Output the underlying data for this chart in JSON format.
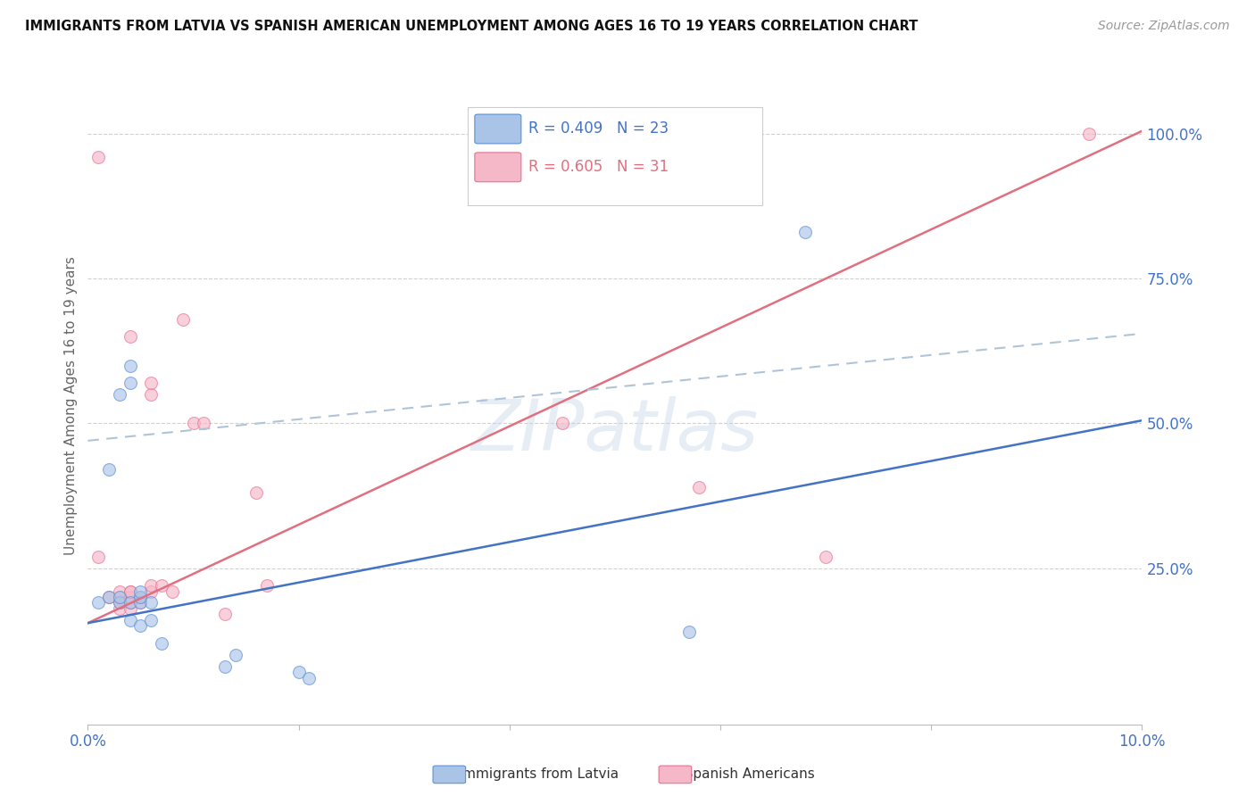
{
  "title": "IMMIGRANTS FROM LATVIA VS SPANISH AMERICAN UNEMPLOYMENT AMONG AGES 16 TO 19 YEARS CORRELATION CHART",
  "source": "Source: ZipAtlas.com",
  "ylabel": "Unemployment Among Ages 16 to 19 years",
  "xlim": [
    0.0,
    0.1
  ],
  "ylim": [
    -0.02,
    1.08
  ],
  "xticks": [
    0.0,
    0.02,
    0.04,
    0.06,
    0.08,
    0.1
  ],
  "xticklabels": [
    "0.0%",
    "",
    "",
    "",
    "",
    "10.0%"
  ],
  "yticks_right": [
    0.25,
    0.5,
    0.75,
    1.0
  ],
  "ytickslabels_right": [
    "25.0%",
    "50.0%",
    "75.0%",
    "100.0%"
  ],
  "legend_blue_R": "R = 0.409",
  "legend_blue_N": "N = 23",
  "legend_pink_R": "R = 0.605",
  "legend_pink_N": "N = 31",
  "blue_fill_color": "#aac4e8",
  "blue_edge_color": "#5b8fd4",
  "pink_fill_color": "#f5b8c8",
  "pink_edge_color": "#e87090",
  "blue_line_color": "#4472c4",
  "pink_line_color": "#e07080",
  "dashed_line_color": "#b0c4d8",
  "watermark": "ZIPatlas",
  "blue_points_x": [
    0.001,
    0.002,
    0.002,
    0.003,
    0.003,
    0.003,
    0.004,
    0.004,
    0.004,
    0.004,
    0.005,
    0.005,
    0.005,
    0.005,
    0.006,
    0.006,
    0.007,
    0.013,
    0.014,
    0.02,
    0.021,
    0.057,
    0.068
  ],
  "blue_points_y": [
    0.19,
    0.2,
    0.42,
    0.19,
    0.2,
    0.55,
    0.16,
    0.19,
    0.57,
    0.6,
    0.15,
    0.19,
    0.2,
    0.21,
    0.16,
    0.19,
    0.12,
    0.08,
    0.1,
    0.07,
    0.06,
    0.14,
    0.83
  ],
  "pink_points_x": [
    0.001,
    0.001,
    0.002,
    0.003,
    0.003,
    0.003,
    0.003,
    0.004,
    0.004,
    0.004,
    0.004,
    0.004,
    0.004,
    0.005,
    0.005,
    0.006,
    0.006,
    0.006,
    0.006,
    0.007,
    0.008,
    0.009,
    0.01,
    0.011,
    0.013,
    0.016,
    0.017,
    0.045,
    0.058,
    0.07,
    0.095
  ],
  "pink_points_y": [
    0.96,
    0.27,
    0.2,
    0.18,
    0.19,
    0.2,
    0.21,
    0.18,
    0.19,
    0.2,
    0.21,
    0.21,
    0.65,
    0.19,
    0.2,
    0.55,
    0.57,
    0.21,
    0.22,
    0.22,
    0.21,
    0.68,
    0.5,
    0.5,
    0.17,
    0.38,
    0.22,
    0.5,
    0.39,
    0.27,
    1.0
  ],
  "blue_line_x": [
    0.0,
    0.1
  ],
  "blue_line_y": [
    0.155,
    0.505
  ],
  "pink_line_x": [
    0.0,
    0.1
  ],
  "pink_line_y": [
    0.155,
    1.005
  ],
  "dashed_line_x": [
    0.0,
    0.1
  ],
  "dashed_line_y": [
    0.47,
    0.655
  ],
  "marker_size": 100,
  "alpha_points": 0.65
}
